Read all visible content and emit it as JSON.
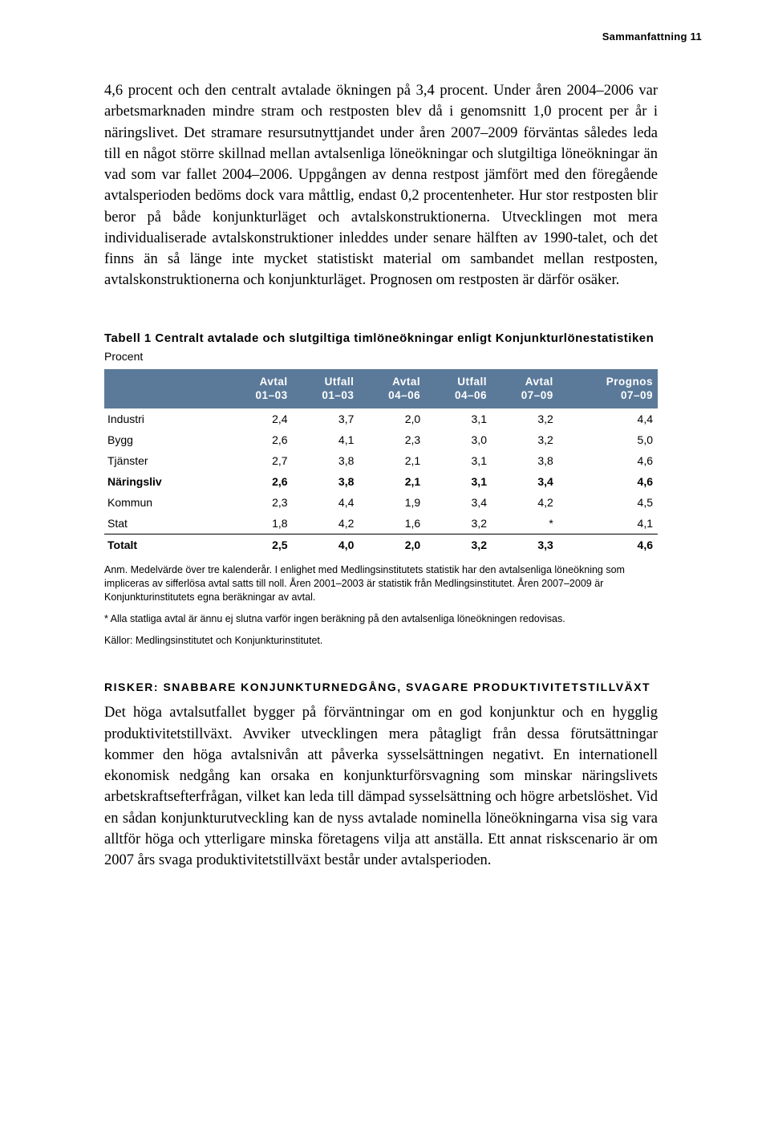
{
  "header": {
    "running": "Sammanfattning  11"
  },
  "paragraph1": "4,6 procent och den centralt avtalade ökningen på 3,4 procent. Under åren 2004–2006 var arbetsmarknaden mindre stram och restposten blev då i genomsnitt 1,0 procent per år i näringslivet. Det stramare resursutnyttjandet under åren 2007–2009 förväntas således leda till en något större skillnad mellan avtalsenliga löneökningar och slutgiltiga löneökningar än vad som var fallet 2004–2006. Uppgången av denna restpost jämfört med den föregående avtalsperioden bedöms dock vara måttlig, endast 0,2 procentenheter. Hur stor restposten blir beror på både konjunkturläget och avtalskonstruktionerna. Utvecklingen mot mera individualiserade avtalskonstruktioner inleddes under senare hälften av 1990-talet, och det finns än så länge inte mycket statistiskt material om sambandet mellan restposten, avtalskonstruktionerna och konjunkturläget. Prognosen om restposten är därför osäker.",
  "table": {
    "title": "Tabell 1 Centralt avtalade och slutgiltiga timlöneökningar enligt Konjunkturlönestatistiken",
    "unit": "Procent",
    "header_bg": "#5b7a9a",
    "header_fg": "#ffffff",
    "columns": [
      {
        "l1": "",
        "l2": ""
      },
      {
        "l1": "Avtal",
        "l2": "01–03"
      },
      {
        "l1": "Utfall",
        "l2": "01–03"
      },
      {
        "l1": "Avtal",
        "l2": "04–06"
      },
      {
        "l1": "Utfall",
        "l2": "04–06"
      },
      {
        "l1": "Avtal",
        "l2": "07–09"
      },
      {
        "l1": "Prognos",
        "l2": "07–09"
      }
    ],
    "rows": [
      {
        "label": "Industri",
        "v": [
          "2,4",
          "3,7",
          "2,0",
          "3,1",
          "3,2",
          "4,4"
        ],
        "bold": false
      },
      {
        "label": "Bygg",
        "v": [
          "2,6",
          "4,1",
          "2,3",
          "3,0",
          "3,2",
          "5,0"
        ],
        "bold": false
      },
      {
        "label": "Tjänster",
        "v": [
          "2,7",
          "3,8",
          "2,1",
          "3,1",
          "3,8",
          "4,6"
        ],
        "bold": false
      },
      {
        "label": "Näringsliv",
        "v": [
          "2,6",
          "3,8",
          "2,1",
          "3,1",
          "3,4",
          "4,6"
        ],
        "bold": true
      },
      {
        "label": "Kommun",
        "v": [
          "2,3",
          "4,4",
          "1,9",
          "3,4",
          "4,2",
          "4,5"
        ],
        "bold": false
      },
      {
        "label": "Stat",
        "v": [
          "1,8",
          "4,2",
          "1,6",
          "3,2",
          "*",
          "4,1"
        ],
        "bold": false
      },
      {
        "label": "Totalt",
        "v": [
          "2,5",
          "4,0",
          "2,0",
          "3,2",
          "3,3",
          "4,6"
        ],
        "bold": true,
        "total": true
      }
    ],
    "notes": [
      "Anm. Medelvärde över tre kalenderår. I enlighet med Medlingsinstitutets statistik har den avtalsenliga löneökning som impliceras av sifferlösa avtal satts till noll. Åren 2001–2003 är statistik från Medlingsinstitutet. Åren 2007–2009 är Konjunkturinstitutets egna beräkningar av avtal.",
      "* Alla statliga avtal är ännu ej slutna varför ingen beräkning på den avtalsenliga löneökningen redovisas.",
      "Källor: Medlingsinstitutet och Konjunkturinstitutet."
    ]
  },
  "section": {
    "heading": "RISKER: SNABBARE KONJUNKTURNEDGÅNG, SVAGARE PRODUKTIVITETSTILLVÄXT",
    "body": "Det höga avtalsutfallet bygger på förväntningar om en god konjunktur och en hygglig produktivitetstillväxt. Avviker utvecklingen mera påtagligt från dessa förutsättningar kommer den höga avtalsnivån att påverka sysselsättningen negativt. En internationell ekonomisk nedgång kan orsaka en konjunkturförsvagning som minskar näringslivets arbetskraftsefterfrågan, vilket kan leda till dämpad sysselsättning och högre arbetslöshet. Vid en sådan konjunkturutveckling kan de nyss avtalade nominella löneökningarna visa sig vara alltför höga och ytterligare minska företagens vilja att anställa. Ett annat riskscenario är om 2007 års svaga produktivitetstillväxt består under avtalsperioden."
  }
}
